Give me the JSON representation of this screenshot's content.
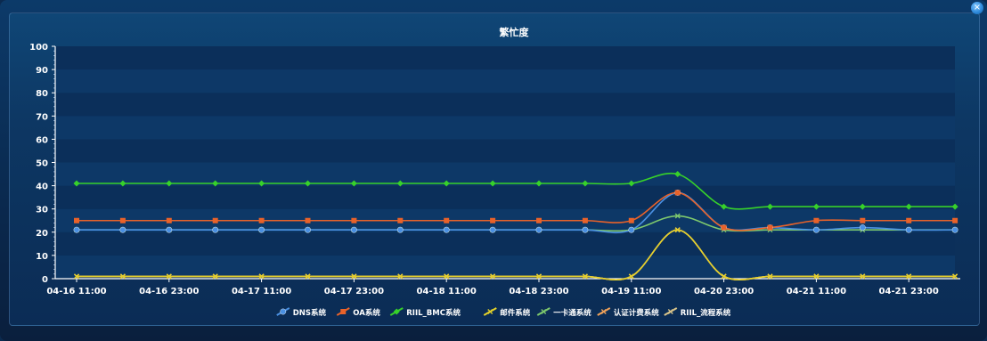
{
  "window": {
    "close_icon": "close-icon"
  },
  "chart_data": {
    "type": "line",
    "title": "繁忙度",
    "xlabel": "",
    "ylabel": "",
    "ylim": [
      0,
      100
    ],
    "yticks": [
      0,
      10,
      20,
      30,
      40,
      50,
      60,
      70,
      80,
      90,
      100
    ],
    "xtick_labels": [
      "04-16 11:00",
      "04-16 23:00",
      "04-17 11:00",
      "04-17 23:00",
      "04-18 11:00",
      "04-18 23:00",
      "04-19 11:00",
      "04-20 23:00",
      "04-21 11:00",
      "04-21 23:00"
    ],
    "x": [
      "04-16 11:00",
      "04-16 17:00",
      "04-16 23:00",
      "04-17 05:00",
      "04-17 11:00",
      "04-17 17:00",
      "04-17 23:00",
      "04-18 05:00",
      "04-18 11:00",
      "04-18 17:00",
      "04-18 23:00",
      "04-19 05:00",
      "04-19 11:00",
      "04-19 17:00",
      "04-20 23:00",
      "04-21 05:00",
      "04-21 11:00",
      "04-21 17:00",
      "04-21 23:00",
      "04-22 05:00"
    ],
    "legend_position": "bottom-center",
    "grid": "horizontal bands",
    "series": [
      {
        "name": "DNS系统",
        "color": "#4a90e2",
        "marker": "circle",
        "values": [
          21,
          21,
          21,
          21,
          21,
          21,
          21,
          21,
          21,
          21,
          21,
          21,
          21,
          37,
          22,
          22,
          21,
          22,
          21,
          21
        ]
      },
      {
        "name": "OA系统",
        "color": "#e8622a",
        "marker": "square",
        "values": [
          25,
          25,
          25,
          25,
          25,
          25,
          25,
          25,
          25,
          25,
          25,
          25,
          25,
          37,
          22,
          22,
          25,
          25,
          25,
          25
        ]
      },
      {
        "name": "RIIL_BMC系统",
        "color": "#37d12a",
        "marker": "diamond",
        "values": [
          41,
          41,
          41,
          41,
          41,
          41,
          41,
          41,
          41,
          41,
          41,
          41,
          41,
          45,
          31,
          31,
          31,
          31,
          31,
          31
        ]
      },
      {
        "name": "邮件系统",
        "color": "#e3d12a",
        "marker": "star",
        "values": [
          1,
          1,
          1,
          1,
          1,
          1,
          1,
          1,
          1,
          1,
          1,
          1,
          1,
          21,
          1,
          1,
          1,
          1,
          1,
          1
        ]
      },
      {
        "name": "一卡通系统",
        "color": "#7ec96d",
        "marker": "star",
        "values": [
          21,
          21,
          21,
          21,
          21,
          21,
          21,
          21,
          21,
          21,
          21,
          21,
          21,
          27,
          21,
          21,
          21,
          21,
          21,
          21
        ]
      },
      {
        "name": "认证计费系统",
        "color": "#f0a25a",
        "marker": "star",
        "values": [
          1,
          1,
          1,
          1,
          1,
          1,
          1,
          1,
          1,
          1,
          1,
          1,
          1,
          21,
          1,
          1,
          1,
          1,
          1,
          1
        ]
      },
      {
        "name": "RIIL_流程系统",
        "color": "#d9c48a",
        "marker": "star",
        "values": [
          1,
          1,
          1,
          1,
          1,
          1,
          1,
          1,
          1,
          1,
          1,
          1,
          1,
          21,
          1,
          1,
          1,
          1,
          1,
          1
        ]
      }
    ]
  }
}
